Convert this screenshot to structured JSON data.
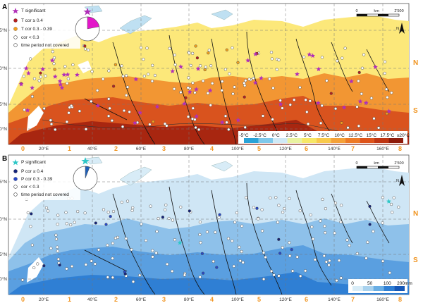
{
  "panels": [
    {
      "letter": "A",
      "legend": [
        {
          "symbol": "star",
          "color": "#b02fb8",
          "label": "T significant"
        },
        {
          "symbol": "dot",
          "color": "#b51f1f",
          "label": "T cor ≥ 0.4"
        },
        {
          "symbol": "dot",
          "color": "#f3a01e",
          "label": "T cor 0.3 - 0.39"
        },
        {
          "symbol": "circle",
          "color": "#ffffff",
          "label": "cor < 0.3"
        },
        {
          "symbol": "circle",
          "color": "#ffffff",
          "label": "time period not covered"
        }
      ],
      "pie": {
        "highlight_fraction": 0.22,
        "highlight_color": "#e316c9"
      },
      "colorbar_labels": [
        "-5°C",
        "-2.5°C",
        "0°C",
        "2.5°C",
        "5°C",
        "7.5°C",
        "10°C",
        "12.5°C",
        "15°C",
        "17.5°C",
        "≥20°C"
      ],
      "colorbar_colors": [
        "#2aa3d8",
        "#7fc8ea",
        "#cfe9f6",
        "#e9f2a0",
        "#f7e765",
        "#f9c94b",
        "#f5a137",
        "#ee7a25",
        "#de5319",
        "#bf3512",
        "#8f1b0a"
      ],
      "palette": {
        "sea": "#ffffff",
        "cold": "#fce87a",
        "warm": "#f29633",
        "hot": "#d9531e",
        "hottest": "#a82610",
        "ice": "#bfe0f2"
      }
    },
    {
      "letter": "B",
      "legend": [
        {
          "symbol": "star",
          "color": "#2ec7c7",
          "label": "P significant"
        },
        {
          "symbol": "dot",
          "color": "#14237a",
          "label": "P cor ≥ 0.4"
        },
        {
          "symbol": "dot",
          "color": "#2748c9",
          "label": "P cor 0.3 - 0.39"
        },
        {
          "symbol": "circle",
          "color": "#ffffff",
          "label": "cor < 0.3"
        },
        {
          "symbol": "circle",
          "color": "#ffffff",
          "label": "time period not covered"
        }
      ],
      "pie": {
        "highlight_fraction": 0.06,
        "highlight_color": "#1e5fb8"
      },
      "colorbar_labels": [
        "0",
        "50",
        "100",
        "200mm"
      ],
      "colorbar_colors": [
        "#d8ecf7",
        "#a9d2ee",
        "#6aaee4",
        "#2f7fd4",
        "#1558b8"
      ],
      "palette": {
        "sea": "#ffffff",
        "dry": "#cfe6f5",
        "mid": "#8ec1ea",
        "wet": "#5a9fe0",
        "wettest": "#2f7fd4"
      }
    }
  ],
  "lat_labels": [
    "75°N",
    "70°N",
    "65°N",
    "60°N"
  ],
  "lon_labels": [
    "20°E",
    "40°E",
    "60°E",
    "80°E",
    "100°E",
    "120°E",
    "140°E",
    "160°E"
  ],
  "zone_numbers": [
    "0",
    "1",
    "2",
    "3",
    "4",
    "5",
    "6",
    "7",
    "8"
  ],
  "zone_sides": [
    "N",
    "S"
  ],
  "scale_bar": {
    "values": [
      "0",
      "2'500"
    ],
    "unit": "km"
  },
  "north_arrow": "N"
}
